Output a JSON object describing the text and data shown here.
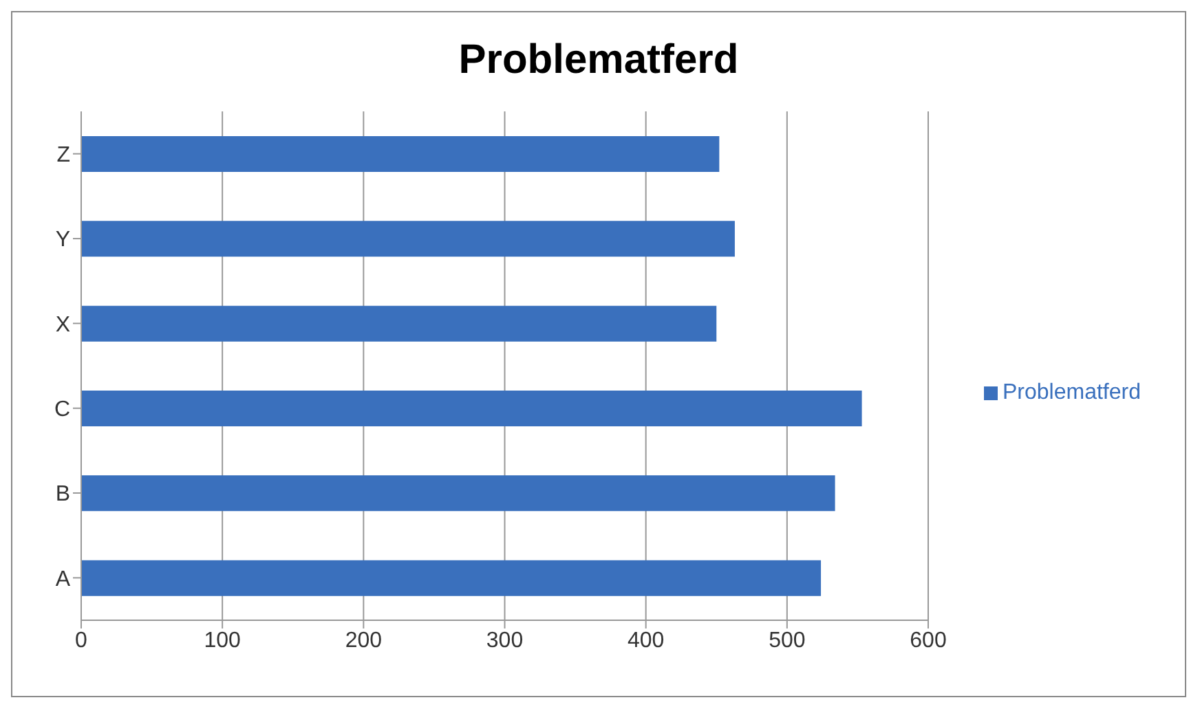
{
  "chart_data": {
    "type": "bar",
    "orientation": "horizontal",
    "title": "Problematferd",
    "categories": [
      "Z",
      "Y",
      "X",
      "C",
      "B",
      "A"
    ],
    "series": [
      {
        "name": "Problematferd",
        "color": "#3a70bd",
        "values": [
          452,
          463,
          450,
          553,
          534,
          524
        ]
      }
    ],
    "xlim": [
      0,
      600
    ],
    "xticks": [
      0,
      100,
      200,
      300,
      400,
      500,
      600
    ],
    "grid": "x",
    "legend": "right"
  }
}
